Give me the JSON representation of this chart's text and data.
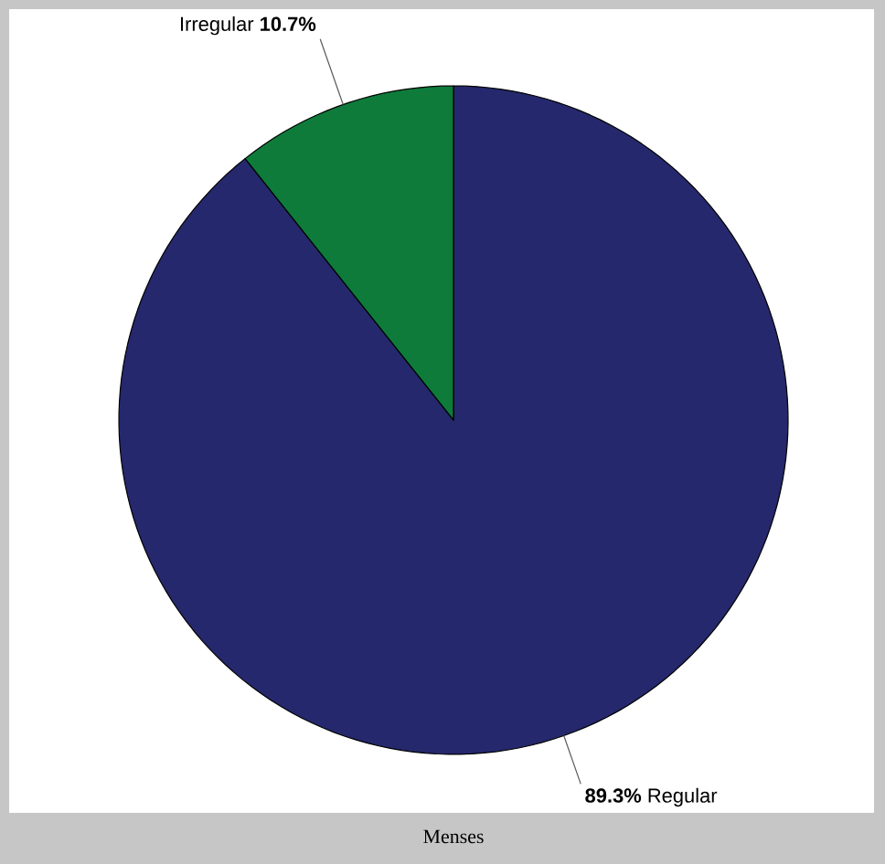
{
  "chart_data": {
    "type": "pie",
    "xlabel": "Menses",
    "categories": [
      "Regular",
      "Irregular"
    ],
    "values": [
      89.3,
      10.7
    ],
    "colors": [
      "#25286c",
      "#0e7b3b"
    ],
    "value_labels": [
      "89.3%",
      "10.7%"
    ]
  }
}
